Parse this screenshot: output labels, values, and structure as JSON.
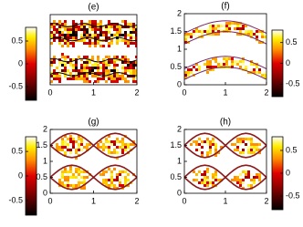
{
  "chart_data": [
    {
      "type": "heatmap",
      "title": "(e)",
      "xlim": [
        0,
        2
      ],
      "ylim": [
        0,
        2
      ],
      "xticks": [
        0,
        1,
        2
      ],
      "colorbar": {
        "lim": [
          -0.8,
          0.8
        ],
        "ticks": [
          0.5,
          0,
          -0.5
        ],
        "side": "left"
      }
    },
    {
      "type": "heatmap",
      "title": "(f)",
      "xlim": [
        0,
        2
      ],
      "ylim": [
        0,
        2
      ],
      "xticks": [
        0,
        1,
        2
      ],
      "yticks": [
        0,
        0.5,
        1,
        1.5,
        2
      ],
      "colorbar": {
        "lim": [
          -0.8,
          0.8
        ],
        "ticks": [
          0.5,
          0,
          -0.5
        ],
        "side": "right"
      }
    },
    {
      "type": "heatmap",
      "title": "(g)",
      "xlim": [
        0,
        2
      ],
      "ylim": [
        0,
        2
      ],
      "xticks": [
        0,
        1,
        2
      ],
      "yticks": [
        0,
        0.5,
        1,
        1.5,
        2
      ],
      "colorbar": {
        "lim": [
          -0.8,
          0.8
        ],
        "ticks": [
          0.5,
          0,
          -0.5
        ],
        "side": "left"
      }
    },
    {
      "type": "heatmap",
      "title": "(h)",
      "xlim": [
        0,
        2
      ],
      "ylim": [
        0,
        2
      ],
      "xticks": [
        0,
        1,
        2
      ],
      "yticks": [
        0,
        0.5,
        1,
        1.5,
        2
      ],
      "colorbar": {
        "lim": [
          -0.8,
          0.8
        ],
        "ticks": [
          0.5,
          0,
          -0.5
        ],
        "side": "right"
      }
    }
  ]
}
